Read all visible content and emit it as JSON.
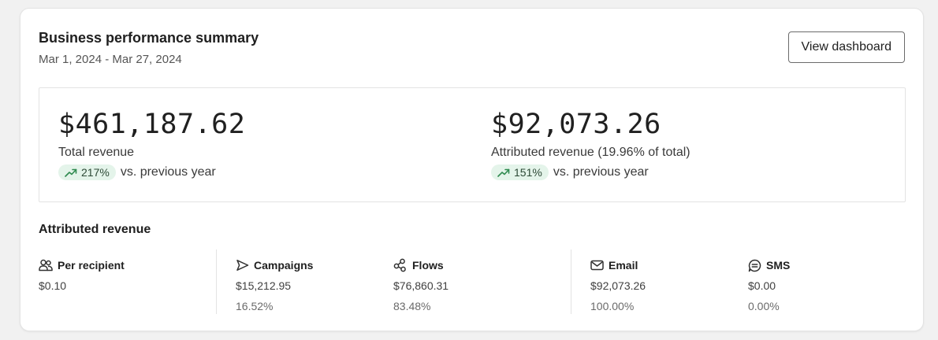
{
  "header": {
    "title": "Business performance summary",
    "date_range": "Mar 1, 2024 - Mar 27, 2024",
    "view_button": "View dashboard"
  },
  "kpis": {
    "total": {
      "value": "$461,187.62",
      "label": "Total revenue",
      "delta": "217%",
      "comparison": "vs. previous year"
    },
    "attributed": {
      "value": "$92,073.26",
      "label": "Attributed revenue (19.96% of total)",
      "delta": "151%",
      "comparison": "vs. previous year"
    }
  },
  "attributed_section": {
    "title": "Attributed revenue",
    "metrics": [
      {
        "icon": "people-icon",
        "label": "Per recipient",
        "value": "$0.10",
        "percent": ""
      },
      {
        "icon": "send-icon",
        "label": "Campaigns",
        "value": "$15,212.95",
        "percent": "16.52%"
      },
      {
        "icon": "flows-icon",
        "label": "Flows",
        "value": "$76,860.31",
        "percent": "83.48%"
      },
      {
        "icon": "email-icon",
        "label": "Email",
        "value": "$92,073.26",
        "percent": "100.00%"
      },
      {
        "icon": "sms-icon",
        "label": "SMS",
        "value": "$0.00",
        "percent": "0.00%"
      }
    ]
  },
  "colors": {
    "trend_green": "#2f8a4f",
    "pill_bg": "#e4f4ea"
  }
}
